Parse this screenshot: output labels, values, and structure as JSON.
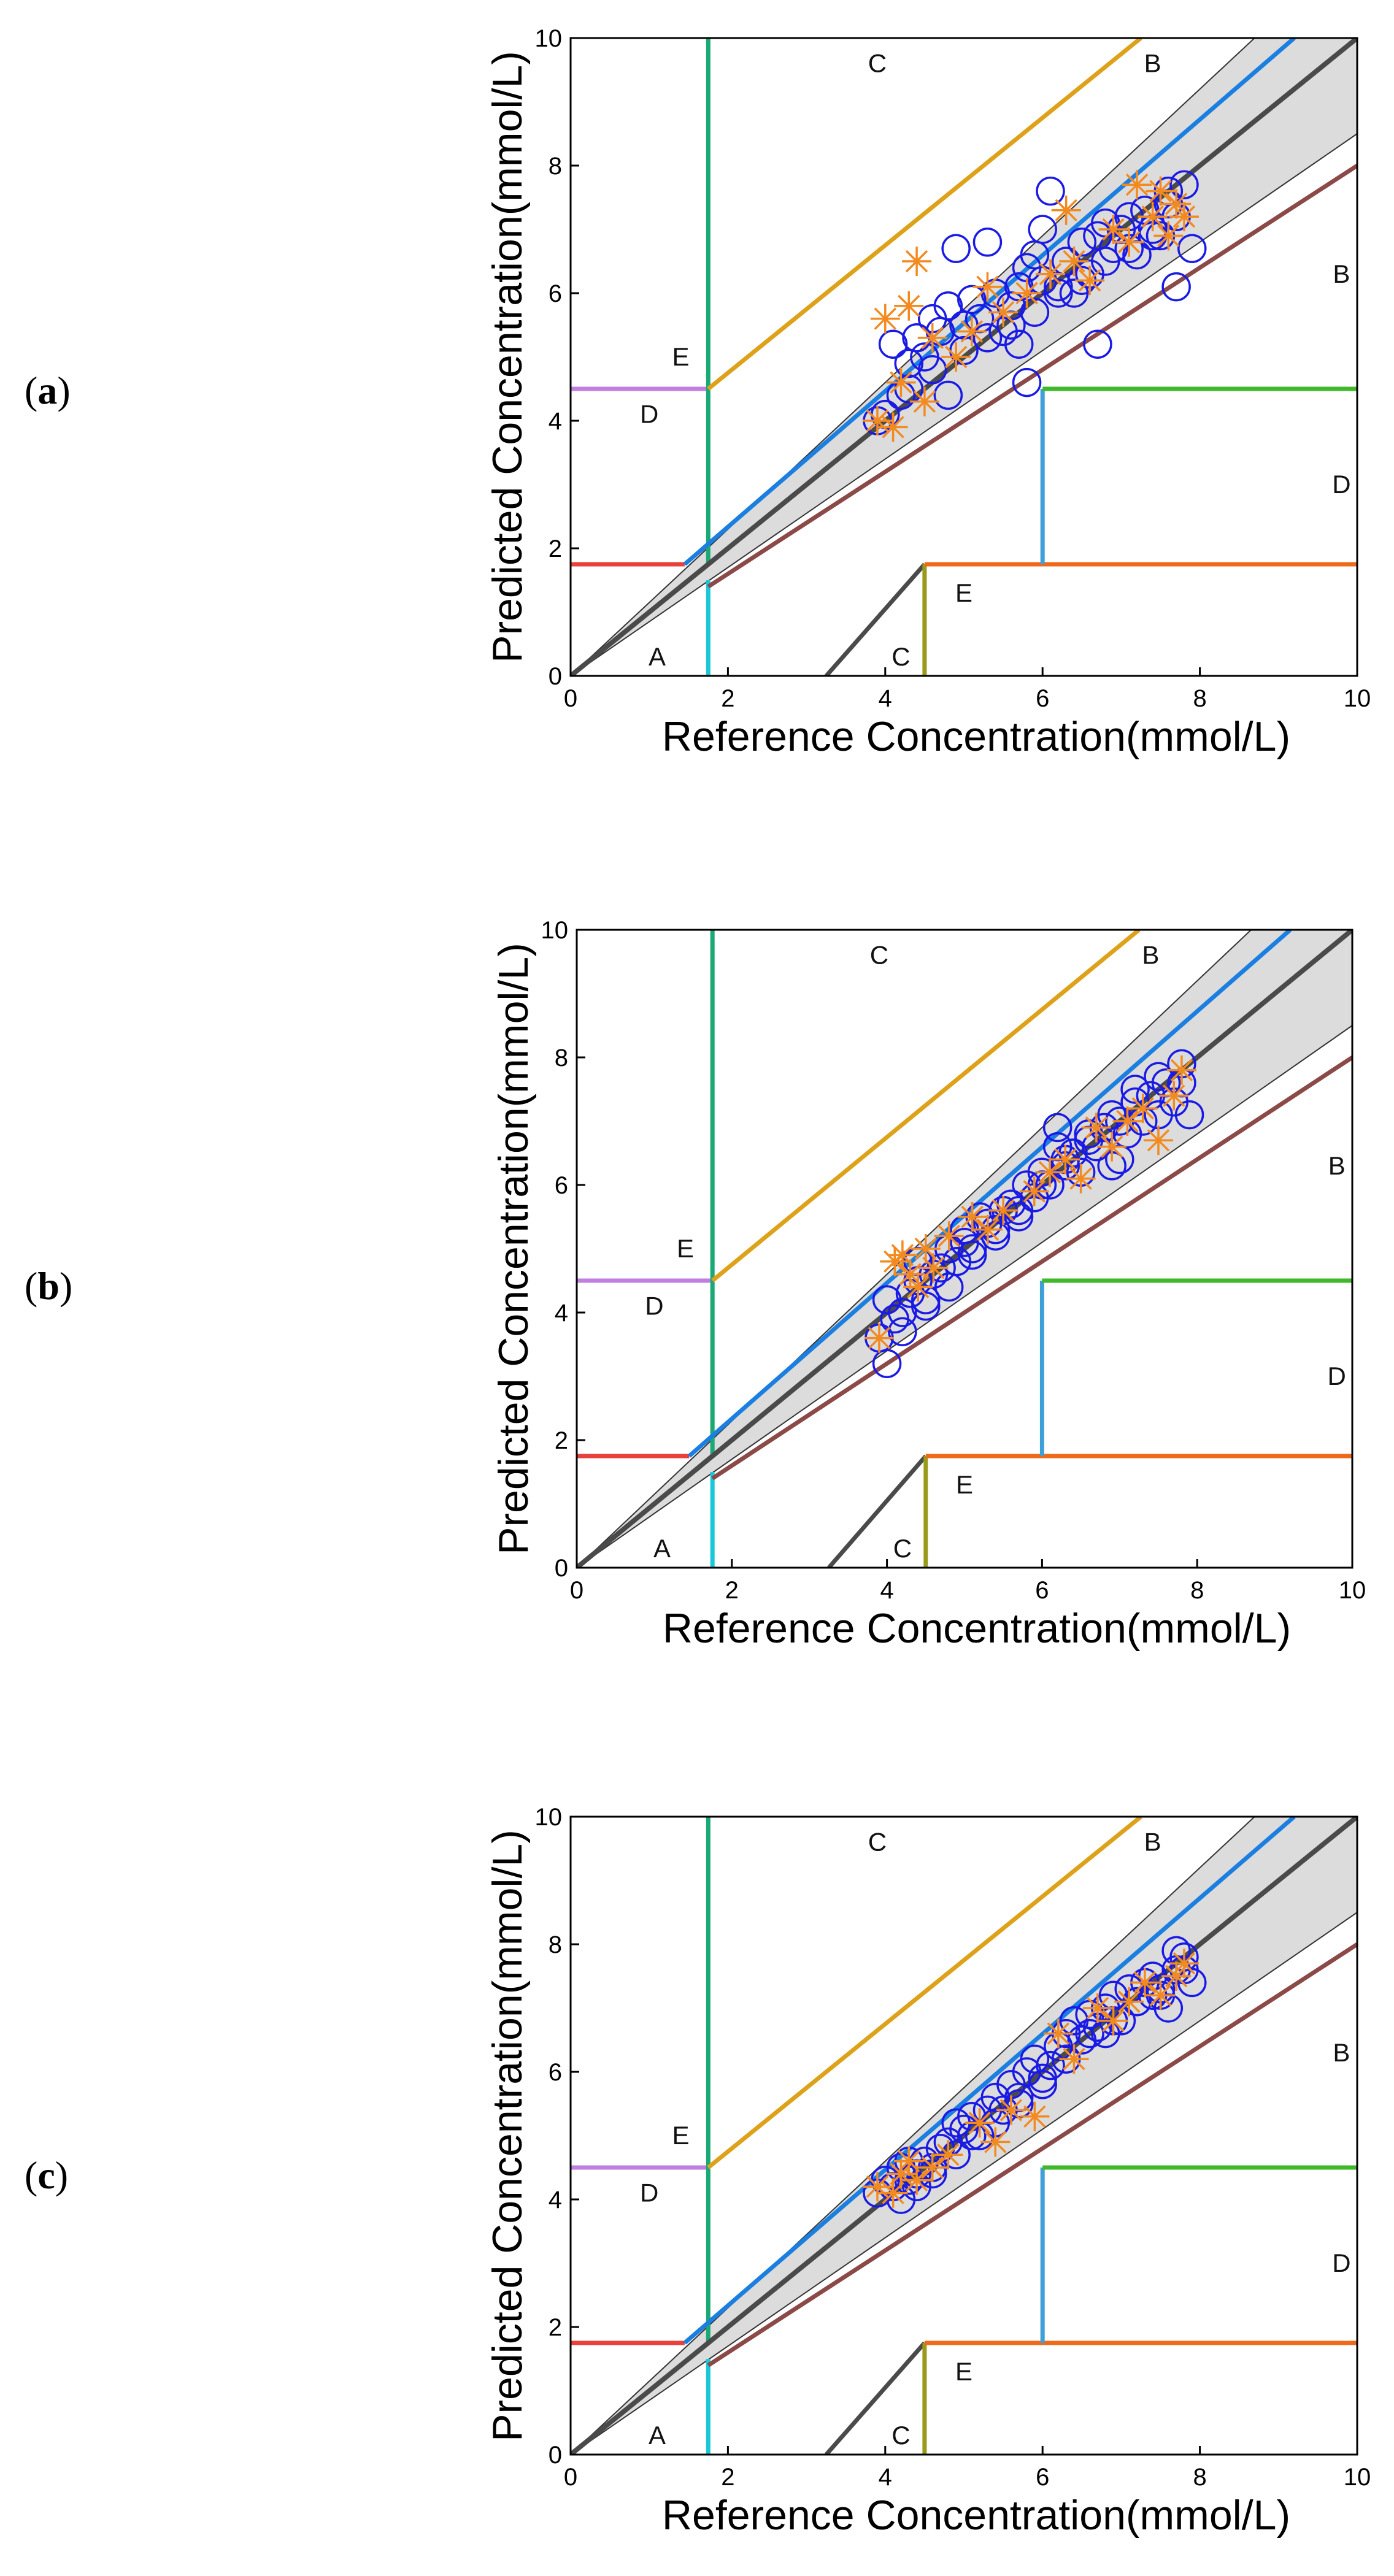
{
  "panels": [
    "a",
    "b",
    "c"
  ],
  "chart_data": [
    {
      "type": "scatter",
      "panel": "a",
      "xlabel": "Reference Concentration(mmol/L)",
      "ylabel": "Predicted Concentration(mmol/L)",
      "xlim": [
        0,
        10
      ],
      "ylim": [
        0,
        10
      ],
      "xticks": [
        0,
        2,
        4,
        6,
        8,
        10
      ],
      "yticks": [
        0,
        2,
        4,
        6,
        8,
        10
      ],
      "zone_labels": [
        {
          "text": "C",
          "x": 3.9,
          "y": 9.6
        },
        {
          "text": "B",
          "x": 7.4,
          "y": 9.6
        },
        {
          "text": "B",
          "x": 9.8,
          "y": 6.3
        },
        {
          "text": "E",
          "x": 1.4,
          "y": 5.0
        },
        {
          "text": "D",
          "x": 1.0,
          "y": 4.1
        },
        {
          "text": "D",
          "x": 9.8,
          "y": 3.0
        },
        {
          "text": "E",
          "x": 5.0,
          "y": 1.3
        },
        {
          "text": "C",
          "x": 4.2,
          "y": 0.3
        },
        {
          "text": "A",
          "x": 1.1,
          "y": 0.3
        }
      ],
      "series": [
        {
          "name": "circles",
          "marker": "o",
          "color": "#1a1ae6",
          "x": [
            3.9,
            4.0,
            4.1,
            4.2,
            4.3,
            4.4,
            4.5,
            4.6,
            4.7,
            4.8,
            4.9,
            5.0,
            5.1,
            5.2,
            5.3,
            5.4,
            5.5,
            5.6,
            5.7,
            5.8,
            5.9,
            6.0,
            6.1,
            6.2,
            6.3,
            6.4,
            6.5,
            6.6,
            6.7,
            6.8,
            6.9,
            7.0,
            7.1,
            7.2,
            7.3,
            7.4,
            7.5,
            7.6,
            7.7,
            7.8,
            7.9,
            4.3,
            4.6,
            5.0,
            5.3,
            5.6,
            5.9,
            6.2,
            6.5,
            6.8,
            7.1,
            7.4,
            7.7,
            5.8,
            6.7,
            7.6,
            4.8,
            5.7,
            6.0
          ],
          "y": [
            4.0,
            4.1,
            5.2,
            4.4,
            4.9,
            5.3,
            5.0,
            5.6,
            5.4,
            5.8,
            6.7,
            5.5,
            5.9,
            5.6,
            6.8,
            6.0,
            5.4,
            5.8,
            6.1,
            6.4,
            6.6,
            6.2,
            7.6,
            6.1,
            6.5,
            6.0,
            6.8,
            6.3,
            6.9,
            7.1,
            6.7,
            7.0,
            7.2,
            6.6,
            7.3,
            7.0,
            6.9,
            7.4,
            6.1,
            7.7,
            6.7,
            4.5,
            4.8,
            5.1,
            5.3,
            5.5,
            5.7,
            6.0,
            6.2,
            6.5,
            6.7,
            6.9,
            7.2,
            4.6,
            5.2,
            7.6,
            4.4,
            5.2,
            7.0
          ]
        },
        {
          "name": "asterisks",
          "marker": "*",
          "color": "#f28a1f",
          "x": [
            3.9,
            4.0,
            4.1,
            4.2,
            4.3,
            4.4,
            4.5,
            4.6,
            4.9,
            5.1,
            5.3,
            5.5,
            5.8,
            6.1,
            6.3,
            6.4,
            6.6,
            6.9,
            7.1,
            7.2,
            7.4,
            7.5,
            7.6,
            7.7,
            7.8
          ],
          "y": [
            4.0,
            5.6,
            3.9,
            4.6,
            5.8,
            6.5,
            4.3,
            5.3,
            5.0,
            5.4,
            6.1,
            5.7,
            6.0,
            6.3,
            7.3,
            6.5,
            6.2,
            7.0,
            6.8,
            7.7,
            7.2,
            7.6,
            6.9,
            7.4,
            7.2
          ]
        }
      ]
    },
    {
      "type": "scatter",
      "panel": "b",
      "xlabel": "Reference Concentration(mmol/L)",
      "ylabel": "Predicted Concentration(mmol/L)",
      "xlim": [
        0,
        10
      ],
      "ylim": [
        0,
        10
      ],
      "xticks": [
        0,
        2,
        4,
        6,
        8,
        10
      ],
      "yticks": [
        0,
        2,
        4,
        6,
        8,
        10
      ],
      "zone_labels": [
        {
          "text": "C",
          "x": 3.9,
          "y": 9.6
        },
        {
          "text": "B",
          "x": 7.4,
          "y": 9.6
        },
        {
          "text": "B",
          "x": 9.8,
          "y": 6.3
        },
        {
          "text": "E",
          "x": 1.4,
          "y": 5.0
        },
        {
          "text": "D",
          "x": 1.0,
          "y": 4.1
        },
        {
          "text": "D",
          "x": 9.8,
          "y": 3.0
        },
        {
          "text": "E",
          "x": 5.0,
          "y": 1.3
        },
        {
          "text": "C",
          "x": 4.2,
          "y": 0.3
        },
        {
          "text": "A",
          "x": 1.1,
          "y": 0.3
        }
      ],
      "series": [
        {
          "name": "circles",
          "marker": "o",
          "color": "#1a1ae6",
          "x": [
            3.9,
            4.0,
            4.0,
            4.1,
            4.2,
            4.3,
            4.4,
            4.5,
            4.6,
            4.7,
            4.8,
            4.9,
            5.0,
            5.1,
            5.2,
            5.3,
            5.4,
            5.5,
            5.6,
            5.7,
            5.8,
            5.9,
            6.0,
            6.1,
            6.2,
            6.3,
            6.4,
            6.5,
            6.6,
            6.7,
            6.8,
            6.9,
            7.0,
            7.1,
            7.2,
            7.3,
            7.4,
            7.5,
            7.6,
            7.7,
            7.8,
            7.9,
            4.2,
            4.5,
            4.8,
            5.1,
            5.4,
            5.7,
            6.0,
            6.3,
            6.6,
            6.9,
            7.2,
            7.5,
            7.8,
            4.4,
            5.0,
            6.2,
            7.0
          ],
          "y": [
            3.6,
            3.2,
            4.2,
            3.9,
            4.0,
            4.3,
            4.5,
            4.2,
            4.6,
            4.7,
            5.0,
            4.8,
            5.3,
            5.0,
            5.5,
            5.4,
            5.2,
            5.6,
            5.7,
            5.5,
            6.0,
            5.8,
            6.2,
            6.0,
            6.6,
            6.3,
            6.5,
            6.2,
            6.8,
            6.6,
            6.9,
            6.3,
            7.0,
            6.8,
            7.3,
            7.0,
            7.4,
            7.1,
            7.6,
            7.3,
            7.9,
            7.1,
            3.7,
            4.1,
            4.4,
            4.9,
            5.3,
            5.6,
            6.0,
            6.4,
            6.7,
            7.1,
            7.5,
            7.7,
            7.6,
            4.8,
            5.1,
            6.9,
            6.4
          ]
        },
        {
          "name": "asterisks",
          "marker": "*",
          "color": "#f28a1f",
          "x": [
            3.9,
            4.1,
            4.2,
            4.3,
            4.4,
            4.5,
            4.6,
            4.8,
            5.1,
            5.3,
            5.5,
            5.9,
            6.1,
            6.3,
            6.5,
            6.7,
            6.9,
            7.1,
            7.3,
            7.5,
            7.7,
            7.8
          ],
          "y": [
            3.6,
            4.8,
            4.9,
            4.6,
            4.4,
            5.0,
            4.7,
            5.2,
            5.5,
            5.3,
            5.6,
            5.9,
            6.2,
            6.4,
            6.1,
            6.9,
            6.6,
            7.0,
            7.2,
            6.7,
            7.4,
            7.8
          ]
        }
      ]
    },
    {
      "type": "scatter",
      "panel": "c",
      "xlabel": "Reference Concentration(mmol/L)",
      "ylabel": "Predicted Concentration(mmol/L)",
      "xlim": [
        0,
        10
      ],
      "ylim": [
        0,
        10
      ],
      "xticks": [
        0,
        2,
        4,
        6,
        8,
        10
      ],
      "yticks": [
        0,
        2,
        4,
        6,
        8,
        10
      ],
      "zone_labels": [
        {
          "text": "C",
          "x": 3.9,
          "y": 9.6
        },
        {
          "text": "B",
          "x": 7.4,
          "y": 9.6
        },
        {
          "text": "B",
          "x": 9.8,
          "y": 6.3
        },
        {
          "text": "E",
          "x": 1.4,
          "y": 5.0
        },
        {
          "text": "D",
          "x": 1.0,
          "y": 4.1
        },
        {
          "text": "D",
          "x": 9.8,
          "y": 3.0
        },
        {
          "text": "E",
          "x": 5.0,
          "y": 1.3
        },
        {
          "text": "C",
          "x": 4.2,
          "y": 0.3
        },
        {
          "text": "A",
          "x": 1.1,
          "y": 0.3
        }
      ],
      "series": [
        {
          "name": "circles",
          "marker": "o",
          "color": "#1a1ae6",
          "x": [
            3.9,
            4.0,
            4.1,
            4.2,
            4.3,
            4.4,
            4.5,
            4.6,
            4.7,
            4.8,
            4.9,
            5.0,
            5.1,
            5.2,
            5.3,
            5.4,
            5.5,
            5.6,
            5.7,
            5.8,
            5.9,
            6.0,
            6.1,
            6.2,
            6.3,
            6.4,
            6.5,
            6.6,
            6.7,
            6.8,
            6.9,
            7.0,
            7.1,
            7.2,
            7.3,
            7.4,
            7.5,
            7.6,
            7.7,
            7.8,
            7.9,
            4.2,
            4.4,
            4.6,
            4.9,
            5.1,
            5.4,
            5.7,
            6.0,
            6.3,
            6.6,
            6.9,
            7.2,
            7.5,
            7.8,
            4.3,
            6.8,
            7.4,
            7.7
          ],
          "y": [
            4.1,
            4.3,
            4.2,
            4.5,
            4.3,
            4.4,
            4.6,
            4.4,
            4.8,
            4.9,
            5.2,
            5.1,
            5.3,
            5.0,
            5.4,
            5.6,
            5.4,
            5.8,
            5.6,
            6.0,
            6.2,
            5.9,
            6.1,
            6.4,
            6.6,
            6.8,
            6.5,
            6.9,
            6.7,
            7.0,
            7.2,
            6.8,
            7.3,
            7.1,
            7.4,
            7.5,
            7.3,
            7.0,
            7.6,
            7.8,
            7.4,
            4.0,
            4.2,
            4.5,
            4.7,
            5.0,
            5.2,
            5.5,
            5.8,
            6.2,
            6.6,
            6.8,
            7.1,
            7.2,
            7.6,
            4.6,
            6.6,
            7.2,
            7.9
          ]
        },
        {
          "name": "asterisks",
          "marker": "*",
          "color": "#f28a1f",
          "x": [
            3.9,
            4.1,
            4.2,
            4.3,
            4.4,
            4.6,
            4.8,
            5.2,
            5.4,
            5.6,
            5.9,
            6.2,
            6.4,
            6.7,
            6.9,
            7.1,
            7.3,
            7.5,
            7.7,
            7.8
          ],
          "y": [
            4.2,
            4.1,
            4.4,
            4.6,
            4.3,
            4.5,
            4.7,
            5.2,
            4.9,
            5.4,
            5.3,
            6.6,
            6.2,
            7.0,
            6.8,
            7.1,
            7.4,
            7.2,
            7.5,
            7.7
          ]
        }
      ]
    }
  ]
}
